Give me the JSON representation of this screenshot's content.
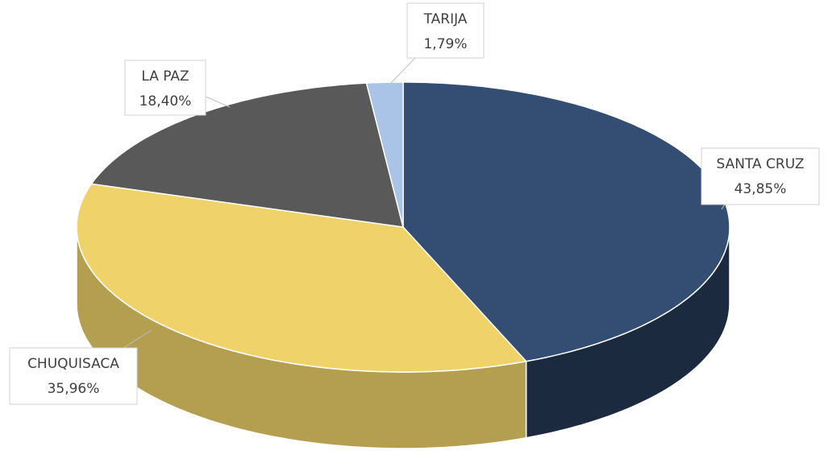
{
  "chart_data": {
    "type": "pie",
    "categories": [
      "SANTA CRUZ",
      "CHUQUISACA",
      "LA PAZ",
      "TARIJA"
    ],
    "values": [
      43.85,
      35.96,
      18.4,
      1.79
    ],
    "value_labels": [
      "43,85%",
      "35,96%",
      "18,40%",
      "1,79%"
    ],
    "colors": [
      "#334d73",
      "#f0d26b",
      "#595959",
      "#a9c4e6"
    ]
  }
}
